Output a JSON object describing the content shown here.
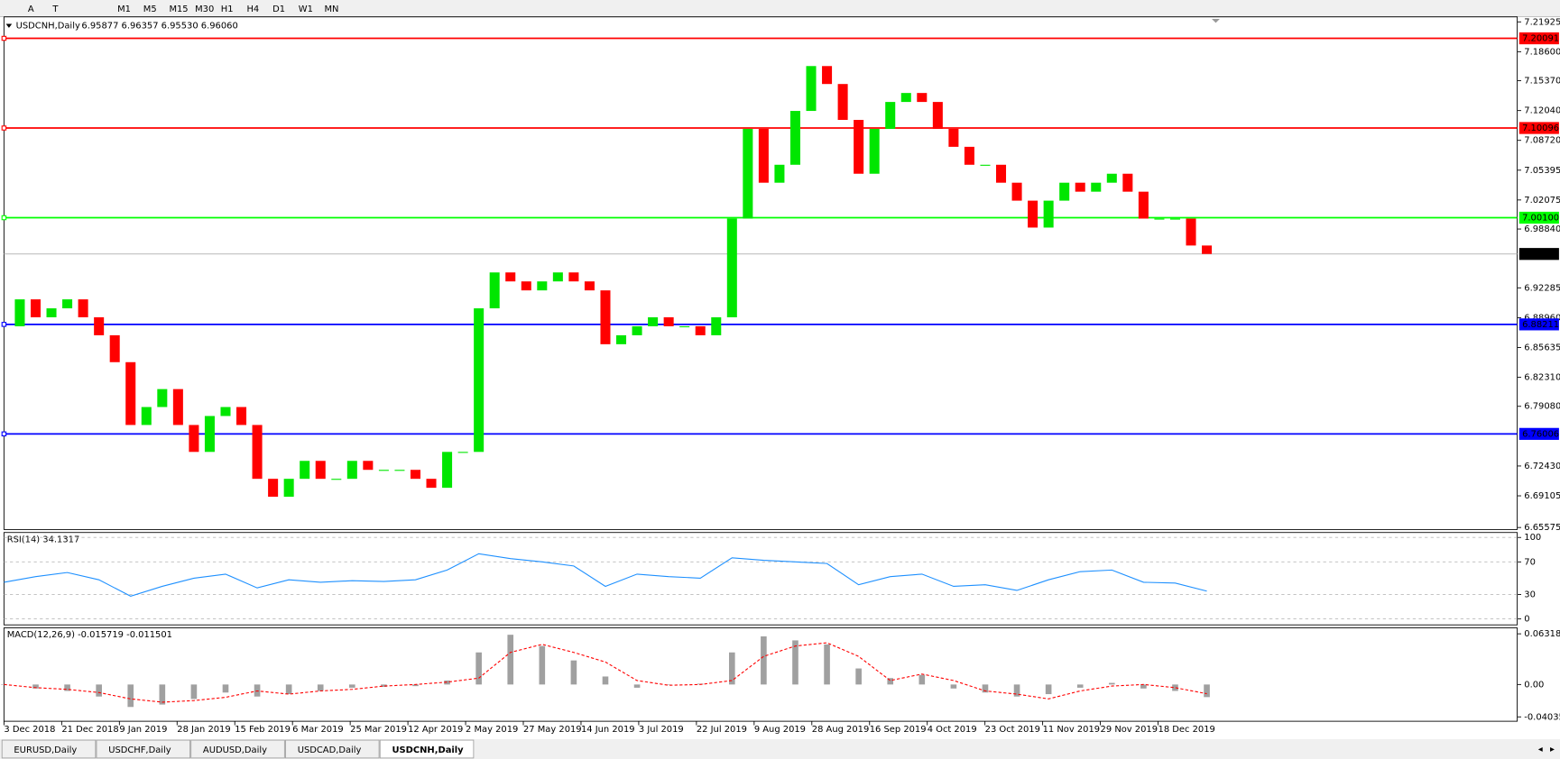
{
  "toolbar": {
    "tools": [
      "A",
      "T"
    ],
    "timeframes": [
      "M1",
      "M5",
      "M15",
      "M30",
      "H1",
      "H4",
      "D1",
      "W1",
      "MN"
    ]
  },
  "chart_data": [
    {
      "type": "candlestick",
      "title": "USDCNH,Daily",
      "quote": "6.95877 6.96357 6.95530 6.96060",
      "up_color": "#00e600",
      "down_color": "#ff0000",
      "values": [
        6.88,
        6.91,
        6.89,
        6.9,
        6.91,
        6.89,
        6.87,
        6.84,
        6.77,
        6.79,
        6.81,
        6.77,
        6.74,
        6.78,
        6.79,
        6.77,
        6.71,
        6.69,
        6.71,
        6.73,
        6.71,
        6.71,
        6.73,
        6.72,
        6.72,
        6.72,
        6.71,
        6.7,
        6.74,
        6.74,
        6.9,
        6.94,
        6.93,
        6.92,
        6.93,
        6.94,
        6.93,
        6.92,
        6.86,
        6.87,
        6.88,
        6.89,
        6.88,
        6.88,
        6.87,
        6.89,
        7.0,
        7.1,
        7.04,
        7.06,
        7.12,
        7.17,
        7.15,
        7.11,
        7.05,
        7.1,
        7.13,
        7.14,
        7.13,
        7.1,
        7.08,
        7.06,
        7.06,
        7.04,
        7.02,
        6.99,
        7.02,
        7.04,
        7.03,
        7.04,
        7.05,
        7.03,
        7.0,
        7.0,
        7.0,
        6.97,
        6.9606
      ],
      "ylim": [
        6.6535,
        7.2248
      ],
      "yticks": [
        7.21925,
        {
          "value": 7.186,
          "label": "7.18600"
        },
        {
          "value": 7.1537,
          "label": "7.15370"
        },
        {
          "value": 7.1204,
          "label": "7.12040"
        },
        {
          "value": 7.0872,
          "label": "7.08720"
        },
        7.05395,
        7.02075,
        {
          "value": 6.9884,
          "label": "6.98840"
        },
        6.92285,
        {
          "value": 6.8896,
          "label": "6.88960"
        },
        6.85635,
        {
          "value": 6.8231,
          "label": "6.82310"
        },
        {
          "value": 6.7908,
          "label": "6.79080"
        },
        {
          "value": 6.7243,
          "label": "6.72430"
        },
        6.69105,
        6.65575
      ],
      "levels": [
        {
          "value": 7.20091,
          "color": "#ff0000"
        },
        {
          "value": 7.10096,
          "color": "#ff0000"
        },
        {
          "value": 7.001,
          "label": "7.00100",
          "color": "#00ff00"
        },
        {
          "value": 6.88211,
          "color": "#0000ff"
        },
        {
          "value": 6.76006,
          "color": "#0000ff"
        }
      ],
      "current": {
        "value": 6.9606,
        "label": "6.96060",
        "color": "#000000"
      },
      "x_labels": [
        "3 Dec 2018",
        "21 Dec 2018",
        "9 Jan 2019",
        "28 Jan 2019",
        "15 Feb 2019",
        "6 Mar 2019",
        "25 Mar 2019",
        "12 Apr 2019",
        "2 May 2019",
        "27 May 2019",
        "14 Jun 2019",
        "3 Jul 2019",
        "22 Jul 2019",
        "9 Aug 2019",
        "28 Aug 2019",
        "16 Sep 2019",
        "4 Oct 2019",
        "23 Oct 2019",
        "11 Nov 2019",
        "29 Nov 2019",
        "18 Dec 2019"
      ]
    },
    {
      "type": "line",
      "title": "RSI(14) 34.1317",
      "color": "#1e90ff",
      "values": [
        45,
        52,
        57,
        48,
        28,
        40,
        50,
        55,
        38,
        48,
        45,
        47,
        46,
        48,
        60,
        80,
        74,
        70,
        65,
        40,
        55,
        52,
        50,
        75,
        72,
        70,
        68,
        42,
        52,
        55,
        40,
        42,
        35,
        48,
        58,
        60,
        45,
        44,
        34.1317
      ],
      "ylim": [
        -7.3,
        106.1
      ],
      "yticks": [
        100,
        70,
        30,
        0
      ]
    },
    {
      "type": "macd",
      "title": "MACD(12,26,9) -0.015719 -0.011501",
      "color": "#a0a0a0",
      "signal_color": "#ff0000",
      "values": [
        0,
        -0.005,
        -0.008,
        -0.015,
        -0.028,
        -0.025,
        -0.018,
        -0.01,
        -0.015,
        -0.012,
        -0.008,
        -0.004,
        -0.003,
        -0.002,
        0.005,
        0.04,
        0.062,
        0.048,
        0.03,
        0.01,
        -0.004,
        0,
        0.001,
        0.04,
        0.06,
        0.055,
        0.05,
        0.02,
        0.008,
        0.012,
        -0.005,
        -0.01,
        -0.015,
        -0.012,
        -0.004,
        0.002,
        -0.005,
        -0.008,
        -0.015719
      ],
      "signal": [
        0,
        -0.004,
        -0.006,
        -0.01,
        -0.018,
        -0.022,
        -0.02,
        -0.016,
        -0.008,
        -0.012,
        -0.008,
        -0.006,
        -0.002,
        0,
        0.003,
        0.008,
        0.04,
        0.05,
        0.04,
        0.028,
        0.005,
        -0.001,
        0,
        0.005,
        0.035,
        0.048,
        0.052,
        0.035,
        0.005,
        0.013,
        0.005,
        -0.008,
        -0.012,
        -0.018,
        -0.008,
        -0.002,
        0,
        -0.004,
        -0.011501
      ],
      "ylim": [
        -0.0458,
        0.0706
      ],
      "yticks": [
        0.063184,
        {
          "value": 0,
          "label": "0.00"
        },
        -0.040355
      ]
    }
  ],
  "tabs": [
    "EURUSD,Daily",
    "USDCHF,Daily",
    "AUDUSD,Daily",
    "USDCAD,Daily",
    "USDCNH,Daily"
  ]
}
